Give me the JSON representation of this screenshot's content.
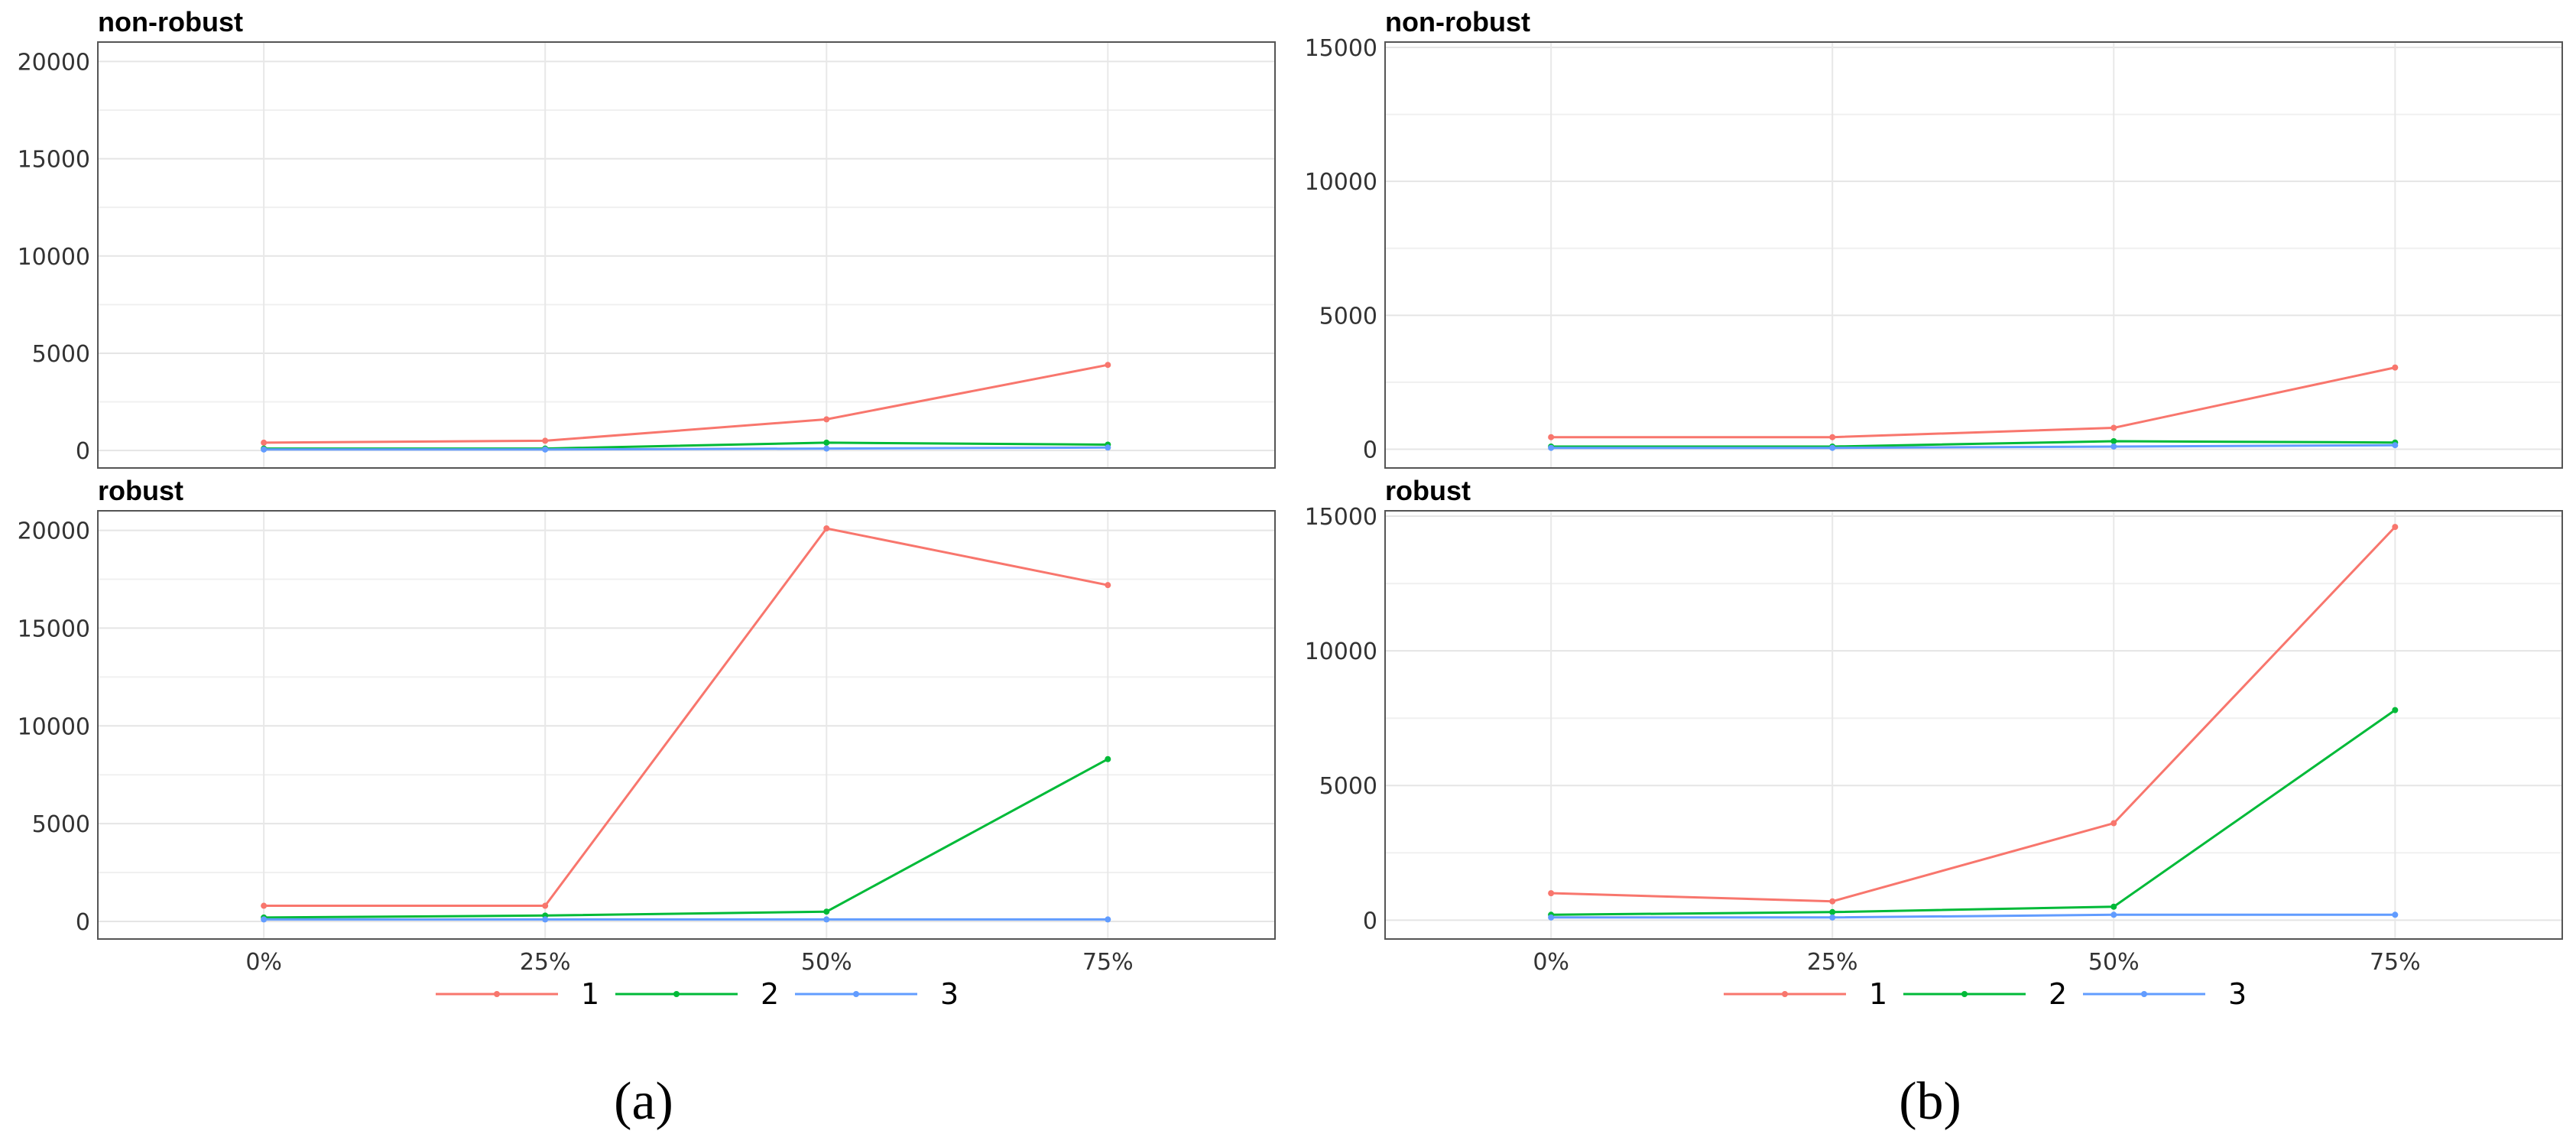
{
  "chart_data": [
    {
      "type": "line",
      "caption": "(a)",
      "categories": [
        "0%",
        "25%",
        "50%",
        "75%"
      ],
      "ylim": [
        -900,
        21000
      ],
      "yticks": [
        0,
        5000,
        10000,
        15000,
        20000
      ],
      "grid": true,
      "legend_position": "bottom",
      "panels": [
        {
          "title": "non-robust",
          "series": [
            {
              "name": "1",
              "color": "#F8766D",
              "values": [
                400,
                500,
                1600,
                4400
              ]
            },
            {
              "name": "2",
              "color": "#00BA38",
              "values": [
                100,
                100,
                400,
                300
              ]
            },
            {
              "name": "3",
              "color": "#619CFF",
              "values": [
                50,
                50,
                100,
                150
              ]
            }
          ]
        },
        {
          "title": "robust",
          "series": [
            {
              "name": "1",
              "color": "#F8766D",
              "values": [
                800,
                800,
                20100,
                17200
              ]
            },
            {
              "name": "2",
              "color": "#00BA38",
              "values": [
                200,
                300,
                500,
                8300
              ]
            },
            {
              "name": "3",
              "color": "#619CFF",
              "values": [
                100,
                100,
                100,
                100
              ]
            }
          ]
        }
      ]
    },
    {
      "type": "line",
      "caption": "(b)",
      "categories": [
        "0%",
        "25%",
        "50%",
        "75%"
      ],
      "ylim": [
        -700,
        15200
      ],
      "yticks": [
        0,
        5000,
        10000,
        15000
      ],
      "grid": true,
      "legend_position": "bottom",
      "panels": [
        {
          "title": "non-robust",
          "series": [
            {
              "name": "1",
              "color": "#F8766D",
              "values": [
                450,
                450,
                800,
                3050
              ]
            },
            {
              "name": "2",
              "color": "#00BA38",
              "values": [
                100,
                100,
                300,
                250
              ]
            },
            {
              "name": "3",
              "color": "#619CFF",
              "values": [
                50,
                50,
                100,
                150
              ]
            }
          ]
        },
        {
          "title": "robust",
          "series": [
            {
              "name": "1",
              "color": "#F8766D",
              "values": [
                1000,
                700,
                3600,
                14600
              ]
            },
            {
              "name": "2",
              "color": "#00BA38",
              "values": [
                200,
                300,
                500,
                7800
              ]
            },
            {
              "name": "3",
              "color": "#619CFF",
              "values": [
                100,
                100,
                200,
                200
              ]
            }
          ]
        }
      ]
    }
  ],
  "legend": [
    {
      "label": "1",
      "color": "#F8766D"
    },
    {
      "label": "2",
      "color": "#00BA38"
    },
    {
      "label": "3",
      "color": "#619CFF"
    }
  ]
}
